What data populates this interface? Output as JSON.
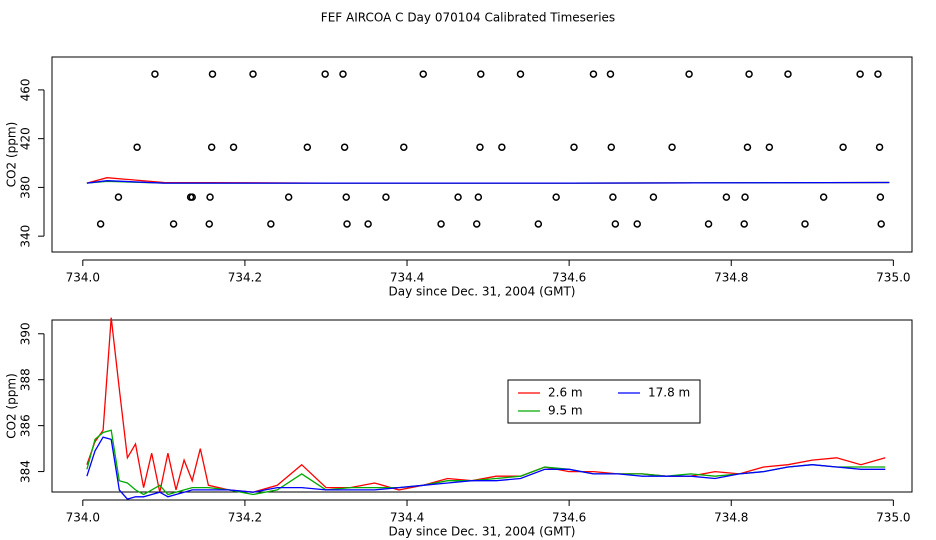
{
  "title": "FEF AIRCOA C  Day 070104  Calibrated Timeseries",
  "chart_data": [
    {
      "type": "line",
      "xlabel": "Day since Dec. 31, 2004 (GMT)",
      "ylabel": "CO2 (ppm)",
      "xlim": [
        733.962,
        735.023
      ],
      "ylim": [
        327,
        487
      ],
      "xticks": [
        {
          "value": 734,
          "label": "734.0"
        },
        734.2,
        734.4,
        734.6,
        734.8,
        {
          "value": 735,
          "label": "735.0"
        }
      ],
      "yticks": [
        340,
        380,
        420,
        460
      ],
      "series": [
        {
          "color": "#ff0000",
          "style": "line",
          "x": [
            734.005,
            734.03,
            734.1,
            734.3,
            734.6,
            734.995
          ],
          "values": [
            383.5,
            388,
            384,
            383.5,
            383.5,
            384
          ]
        },
        {
          "color": "#00aa00",
          "style": "line",
          "x": [
            734.005,
            734.03,
            734.1,
            734.3,
            734.6,
            734.995
          ],
          "values": [
            383.5,
            385,
            383.5,
            383.5,
            383.5,
            384
          ]
        },
        {
          "color": "#0000ff",
          "style": "line",
          "x": [
            734.005,
            734.03,
            734.1,
            734.3,
            734.6,
            734.995
          ],
          "values": [
            383.5,
            385.5,
            383.5,
            383.5,
            383.5,
            384
          ]
        },
        {
          "color": "#000000",
          "style": "points",
          "x": [
            734.089,
            734.16,
            734.21,
            734.299,
            734.321,
            734.42,
            734.491,
            734.54,
            734.63,
            734.651,
            734.748,
            734.822,
            734.87,
            734.959,
            734.981,
            734.067,
            734.159,
            734.186,
            734.277,
            734.323,
            734.396,
            734.49,
            734.517,
            734.606,
            734.652,
            734.727,
            734.82,
            734.847,
            734.938,
            734.983,
            734.044,
            734.157,
            734.133,
            734.135,
            734.254,
            734.325,
            734.374,
            734.463,
            734.488,
            734.584,
            734.654,
            734.704,
            734.794,
            734.817,
            734.914,
            734.984,
            734.022,
            734.112,
            734.156,
            734.232,
            734.326,
            734.352,
            734.442,
            734.486,
            734.562,
            734.657,
            734.684,
            734.772,
            734.816,
            734.891,
            734.985
          ],
          "values": [
            473,
            473,
            473,
            473,
            473,
            473,
            473,
            473,
            473,
            473,
            473,
            473,
            473,
            473,
            473,
            413,
            413,
            413,
            413,
            413,
            413,
            413,
            413,
            413,
            413,
            413,
            413,
            413,
            413,
            413,
            372,
            372,
            372,
            372,
            372,
            372,
            372,
            372,
            372,
            372,
            372,
            372,
            372,
            372,
            372,
            372,
            350,
            350,
            350,
            350,
            350,
            350,
            350,
            350,
            350,
            350,
            350,
            350,
            350,
            350,
            350
          ]
        }
      ]
    },
    {
      "type": "line",
      "xlabel": "Day since Dec. 31, 2004 (GMT)",
      "ylabel": "CO2 (ppm)",
      "xlim": [
        733.962,
        735.023
      ],
      "ylim": [
        383.11,
        390.6
      ],
      "xticks": [
        {
          "value": 734,
          "label": "734.0"
        },
        734.2,
        734.4,
        734.6,
        734.8,
        {
          "value": 735,
          "label": "735.0"
        }
      ],
      "yticks": [
        384,
        386,
        388,
        390
      ],
      "legend": "center-right",
      "series": [
        {
          "name": "2.6 m",
          "color": "#ff0000",
          "style": "line",
          "x": [
            734.005,
            734.015,
            734.025,
            734.035,
            734.045,
            734.055,
            734.065,
            734.075,
            734.085,
            734.095,
            734.105,
            734.115,
            734.125,
            734.135,
            734.145,
            734.155,
            734.18,
            734.21,
            734.24,
            734.27,
            734.3,
            734.33,
            734.36,
            734.39,
            734.42,
            734.45,
            734.48,
            734.51,
            734.54,
            734.57,
            734.6,
            734.63,
            734.66,
            734.69,
            734.72,
            734.75,
            734.78,
            734.81,
            734.84,
            734.87,
            734.9,
            734.93,
            734.96,
            734.99
          ],
          "values": [
            384.3,
            385.3,
            385.8,
            390.7,
            387.6,
            384.6,
            385.2,
            383.3,
            384.8,
            383.1,
            384.8,
            383.2,
            384.5,
            383.6,
            385.0,
            383.4,
            383.2,
            383.1,
            383.4,
            384.3,
            383.3,
            383.3,
            383.5,
            383.2,
            383.4,
            383.7,
            383.6,
            383.8,
            383.8,
            384.2,
            384.0,
            384.0,
            383.9,
            383.9,
            383.8,
            383.8,
            384.0,
            383.9,
            384.2,
            384.3,
            384.5,
            384.6,
            384.3,
            384.6
          ]
        },
        {
          "name": "9.5 m",
          "color": "#00aa00",
          "style": "line",
          "x": [
            734.005,
            734.015,
            734.025,
            734.035,
            734.045,
            734.055,
            734.065,
            734.075,
            734.085,
            734.095,
            734.105,
            734.115,
            734.125,
            734.135,
            734.145,
            734.155,
            734.18,
            734.21,
            734.24,
            734.27,
            734.3,
            734.33,
            734.36,
            734.39,
            734.42,
            734.45,
            734.48,
            734.51,
            734.54,
            734.57,
            734.6,
            734.63,
            734.66,
            734.69,
            734.72,
            734.75,
            734.78,
            734.81,
            734.84,
            734.87,
            734.9,
            734.93,
            734.96,
            734.99
          ],
          "values": [
            384.1,
            385.4,
            385.7,
            385.8,
            383.6,
            383.5,
            383.2,
            383.0,
            383.2,
            383.4,
            383.0,
            383.1,
            383.2,
            383.3,
            383.3,
            383.3,
            383.2,
            383.0,
            383.2,
            383.9,
            383.2,
            383.3,
            383.3,
            383.3,
            383.4,
            383.6,
            383.6,
            383.7,
            383.8,
            384.2,
            384.1,
            383.9,
            383.9,
            383.9,
            383.8,
            383.9,
            383.8,
            383.9,
            384.0,
            384.2,
            384.3,
            384.2,
            384.2,
            384.2
          ]
        },
        {
          "name": "17.8 m",
          "color": "#0000ff",
          "style": "line",
          "x": [
            734.005,
            734.015,
            734.025,
            734.035,
            734.045,
            734.055,
            734.065,
            734.075,
            734.085,
            734.095,
            734.105,
            734.115,
            734.125,
            734.135,
            734.145,
            734.155,
            734.18,
            734.21,
            734.24,
            734.27,
            734.3,
            734.33,
            734.36,
            734.39,
            734.42,
            734.45,
            734.48,
            734.51,
            734.54,
            734.57,
            734.6,
            734.63,
            734.66,
            734.69,
            734.72,
            734.75,
            734.78,
            734.81,
            734.84,
            734.87,
            734.9,
            734.93,
            734.96,
            734.99
          ],
          "values": [
            383.8,
            384.9,
            385.5,
            385.4,
            383.2,
            382.8,
            382.9,
            382.9,
            383.0,
            383.1,
            382.9,
            383.0,
            383.1,
            383.2,
            383.2,
            383.2,
            383.2,
            383.1,
            383.3,
            383.3,
            383.2,
            383.2,
            383.2,
            383.3,
            383.4,
            383.5,
            383.6,
            383.6,
            383.7,
            384.1,
            384.1,
            383.9,
            383.9,
            383.8,
            383.8,
            383.8,
            383.7,
            383.9,
            384.0,
            384.2,
            384.3,
            384.2,
            384.1,
            384.1
          ]
        }
      ]
    }
  ]
}
